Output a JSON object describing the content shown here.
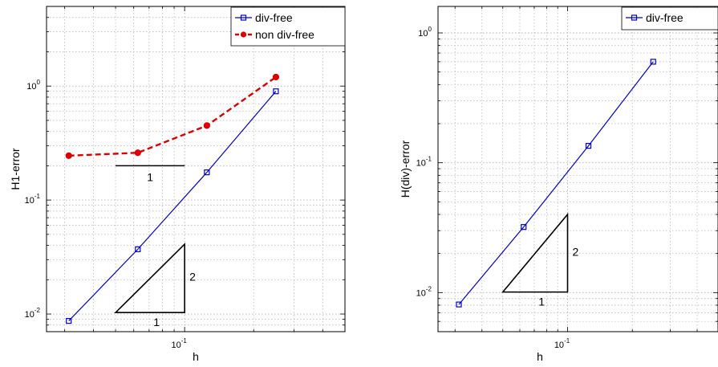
{
  "chart_data": [
    {
      "type": "line",
      "xscale": "log",
      "yscale": "log",
      "xlim": [
        0.025,
        0.5
      ],
      "ylim": [
        0.007,
        5
      ],
      "xlabel": "h",
      "ylabel": "H1-error",
      "grid": true,
      "legend_position": "top-right",
      "x_tick_labels": [
        "10",
        "-1"
      ],
      "y_tick_labels": [
        {
          "base": "10",
          "exp": "0",
          "value": 1
        },
        {
          "base": "10",
          "exp": "-1",
          "value": 0.1
        },
        {
          "base": "10",
          "exp": "-2",
          "value": 0.01
        }
      ],
      "series": [
        {
          "name": "div-free",
          "color": "#0000cc",
          "marker": "square",
          "dash": "solid",
          "x": [
            0.03125,
            0.0625,
            0.125,
            0.25
          ],
          "y": [
            0.0087,
            0.037,
            0.175,
            0.9
          ]
        },
        {
          "name": "non div-free",
          "color": "#dd0000",
          "marker": "dot",
          "dash": "dashed",
          "x": [
            0.03125,
            0.0625,
            0.125,
            0.25
          ],
          "y": [
            0.245,
            0.26,
            0.45,
            1.2
          ]
        }
      ],
      "slope_lines": [
        {
          "label": "1",
          "x0": 0.05,
          "x1": 0.1,
          "y": 0.2
        }
      ],
      "triangles": [
        {
          "run_label": "1",
          "rise_label": "2",
          "x0": 0.05,
          "x1": 0.1,
          "y0": 0.0103,
          "y1": 0.041
        }
      ]
    },
    {
      "type": "line",
      "xscale": "log",
      "yscale": "log",
      "xlim": [
        0.025,
        0.5
      ],
      "ylim": [
        0.005,
        1.6
      ],
      "xlabel": "h",
      "ylabel": "H(div)-error",
      "grid": true,
      "legend_position": "top-right",
      "x_tick_labels": [
        "10",
        "-1"
      ],
      "y_tick_labels": [
        {
          "base": "10",
          "exp": "0",
          "value": 1
        },
        {
          "base": "10",
          "exp": "-1",
          "value": 0.1
        },
        {
          "base": "10",
          "exp": "-2",
          "value": 0.01
        }
      ],
      "series": [
        {
          "name": "div-free",
          "color": "#0000cc",
          "marker": "square",
          "dash": "solid",
          "x": [
            0.03125,
            0.0625,
            0.125,
            0.25
          ],
          "y": [
            0.0081,
            0.032,
            0.135,
            0.6
          ]
        }
      ],
      "slope_lines": [],
      "triangles": [
        {
          "run_label": "1",
          "rise_label": "2",
          "x0": 0.05,
          "x1": 0.1,
          "y0": 0.0101,
          "y1": 0.04
        }
      ]
    }
  ]
}
